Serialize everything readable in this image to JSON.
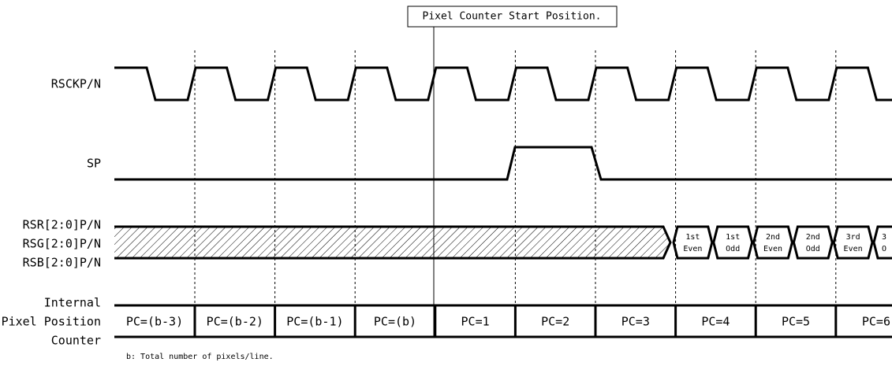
{
  "callout": "Pixel Counter Start Position.",
  "signals": {
    "clock": "RSCKP/N",
    "sp": "SP",
    "data": [
      "RSR[2:0]P/N",
      "RSG[2:0]P/N",
      "RSB[2:0]P/N"
    ],
    "counter": [
      "Internal",
      "Pixel Position",
      "Counter"
    ]
  },
  "data_cells": [
    [
      "1st",
      "Even"
    ],
    [
      "1st",
      "Odd"
    ],
    [
      "2nd",
      "Even"
    ],
    [
      "2nd",
      "Odd"
    ],
    [
      "3rd",
      "Even"
    ],
    [
      "3",
      "O"
    ]
  ],
  "counter_cells": [
    "PC=(b-3)",
    "PC=(b-2)",
    "PC=(b-1)",
    "PC=(b)",
    "PC=1",
    "PC=2",
    "PC=3",
    "PC=4",
    "PC=5",
    "PC=6"
  ],
  "footnote": "b: Total number of pixels/line."
}
